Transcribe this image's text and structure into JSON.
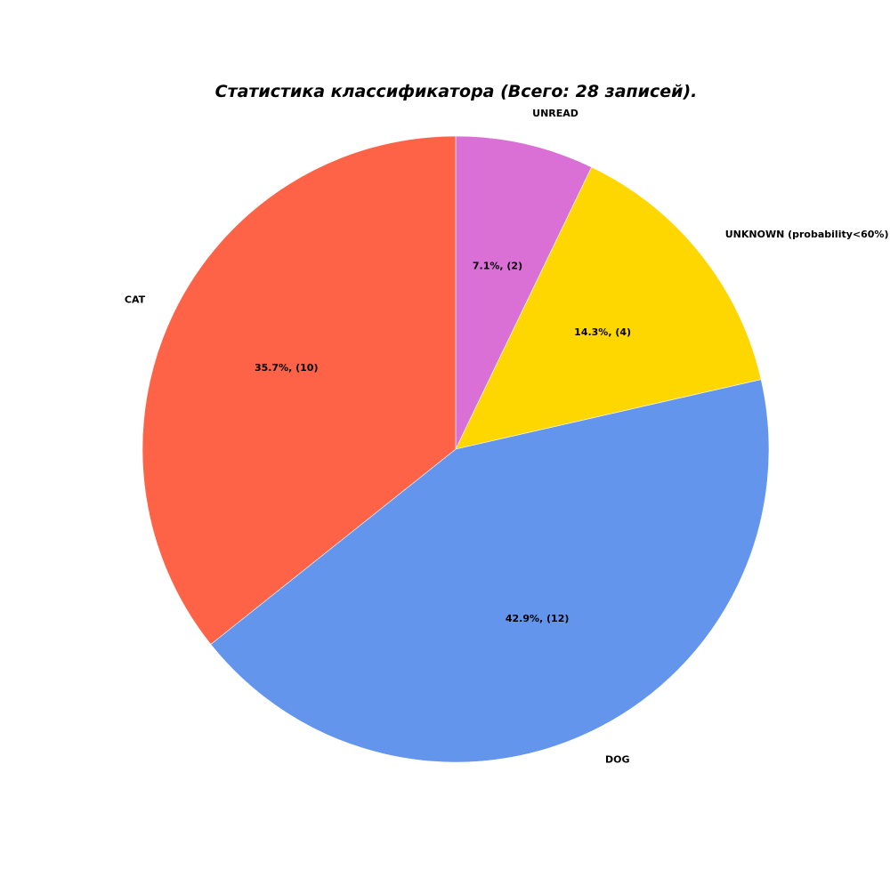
{
  "chart_data": {
    "type": "pie",
    "title": "Статистика классификатора (Всего: 28 записей).",
    "total": 28,
    "start_angle_deg": 90,
    "direction": "clockwise",
    "slices": [
      {
        "label": "UNREAD",
        "value": 2,
        "percent_label": "7.1%, (2)",
        "color": "#DA70D6"
      },
      {
        "label": "UNKNOWN (probability<60%)",
        "value": 4,
        "percent_label": "14.3%, (4)",
        "color": "#FFD700"
      },
      {
        "label": "DOG",
        "value": 12,
        "percent_label": "42.9%, (12)",
        "color": "#6495ED"
      },
      {
        "label": "CAT",
        "value": 10,
        "percent_label": "35.7%, (10)",
        "color": "#FF6347"
      }
    ]
  }
}
